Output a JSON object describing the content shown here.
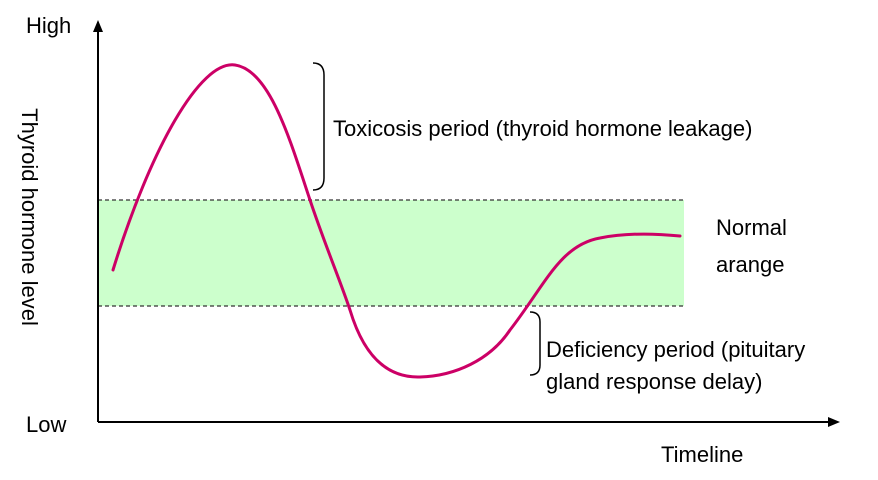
{
  "axes": {
    "y_high_label": "High",
    "y_low_label": "Low",
    "y_axis_title": "Thyroid hormone level",
    "x_axis_title": "Timeline"
  },
  "normal_band": {
    "label_line1": "Normal",
    "label_line2": "arange",
    "fill_color": "#ccffcc",
    "border_color": "#333333"
  },
  "annotations": {
    "toxicosis": "Toxicosis period (thyroid hormone leakage)",
    "deficiency_line1": "Deficiency period (pituitary",
    "deficiency_line2": "gland response delay)"
  },
  "curve": {
    "color": "#cc0066"
  }
}
